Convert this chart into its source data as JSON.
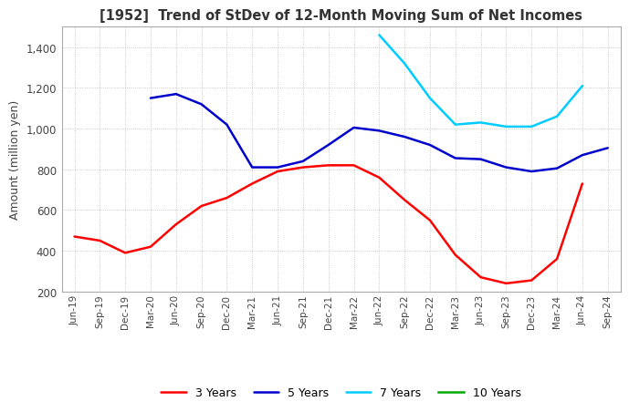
{
  "title": "[1952]  Trend of StDev of 12-Month Moving Sum of Net Incomes",
  "ylabel": "Amount (million yen)",
  "ylim": [
    200,
    1500
  ],
  "yticks": [
    200,
    400,
    600,
    800,
    1000,
    1200,
    1400
  ],
  "background_color": "#ffffff",
  "grid_color": "#bbbbbb",
  "x_labels": [
    "Jun-19",
    "Sep-19",
    "Dec-19",
    "Mar-20",
    "Jun-20",
    "Sep-20",
    "Dec-20",
    "Mar-21",
    "Jun-21",
    "Sep-21",
    "Dec-21",
    "Mar-22",
    "Jun-22",
    "Sep-22",
    "Dec-22",
    "Mar-23",
    "Jun-23",
    "Sep-23",
    "Dec-23",
    "Mar-24",
    "Jun-24",
    "Sep-24"
  ],
  "series": {
    "3 Years": {
      "color": "#ff0000",
      "data": [
        470,
        450,
        390,
        420,
        530,
        620,
        660,
        730,
        790,
        810,
        820,
        820,
        760,
        650,
        550,
        380,
        270,
        240,
        255,
        360,
        730,
        null
      ]
    },
    "5 Years": {
      "color": "#0000cc",
      "data": [
        null,
        null,
        null,
        1150,
        1170,
        1120,
        1020,
        810,
        810,
        840,
        920,
        1005,
        990,
        960,
        920,
        855,
        850,
        810,
        790,
        805,
        870,
        905
      ]
    },
    "7 Years": {
      "color": "#00ccff",
      "data": [
        null,
        null,
        null,
        null,
        null,
        null,
        null,
        null,
        null,
        null,
        null,
        null,
        1460,
        1320,
        1150,
        1020,
        1030,
        1010,
        1010,
        1060,
        1210,
        null
      ]
    },
    "10 Years": {
      "color": "#00aa00",
      "data": [
        null,
        null,
        null,
        null,
        null,
        null,
        null,
        null,
        null,
        null,
        null,
        null,
        null,
        null,
        null,
        null,
        null,
        null,
        null,
        null,
        null,
        null
      ]
    }
  },
  "legend_order": [
    "3 Years",
    "5 Years",
    "7 Years",
    "10 Years"
  ]
}
